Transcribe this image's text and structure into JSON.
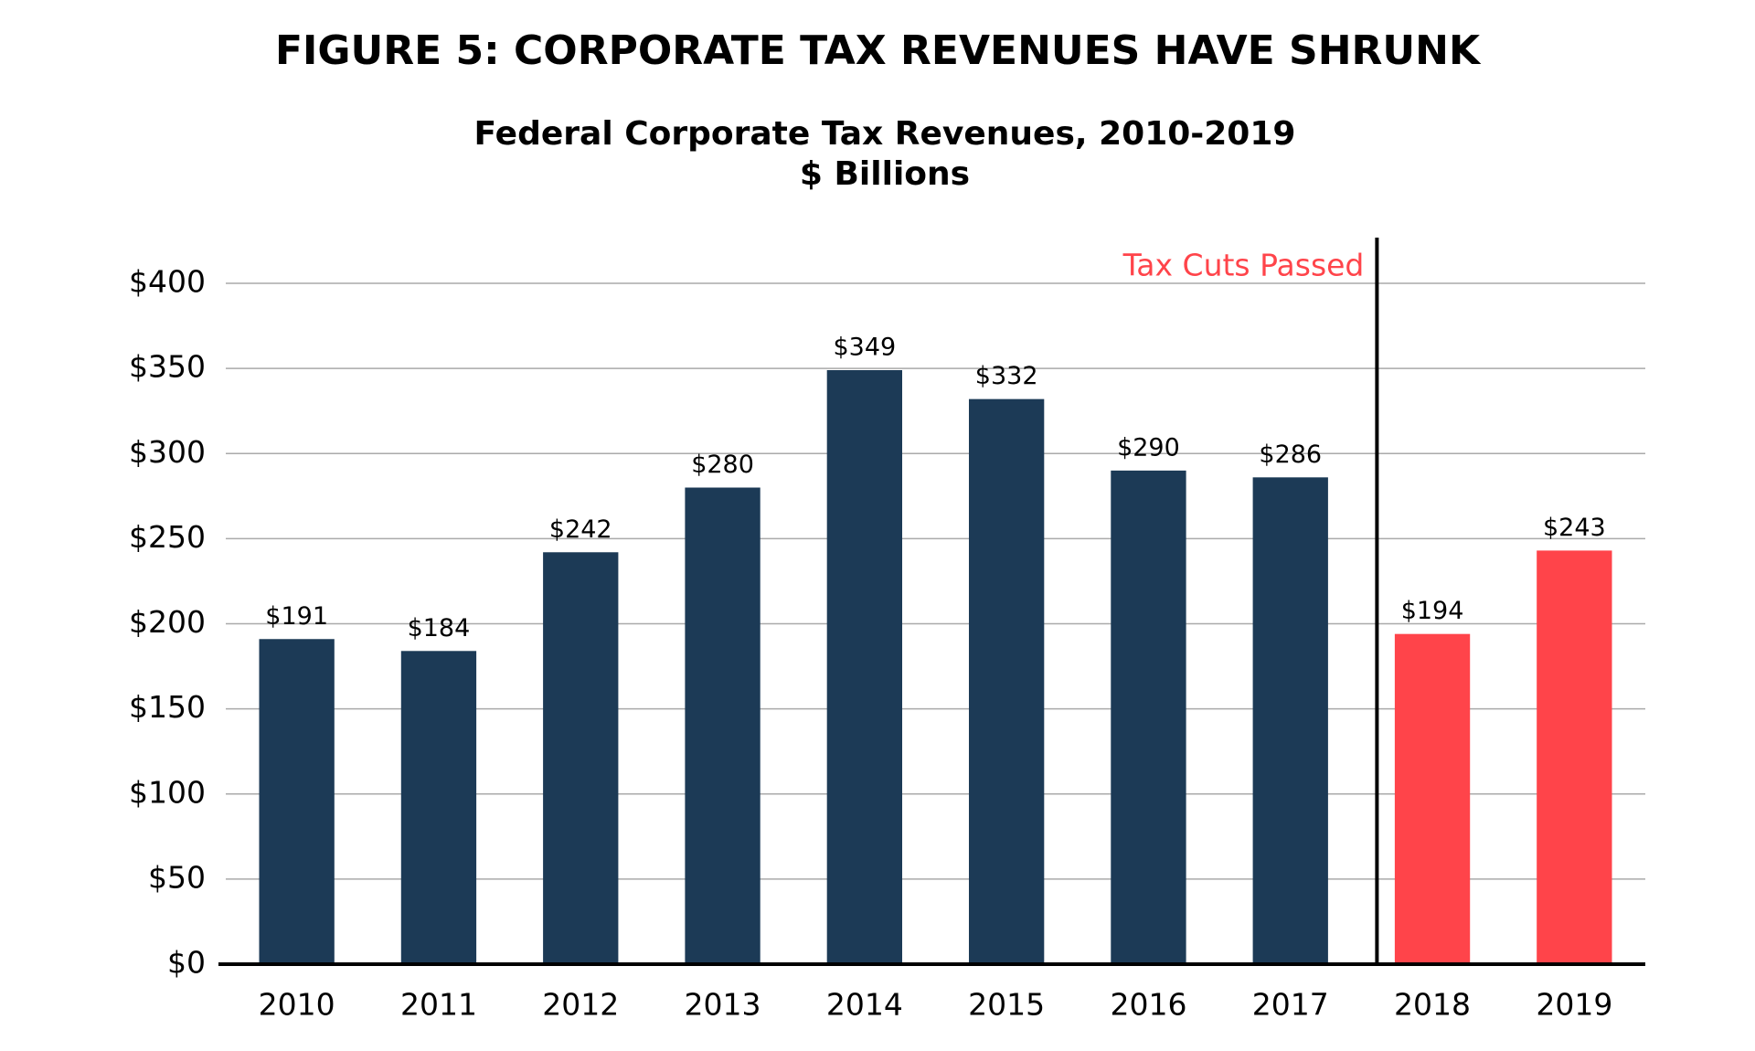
{
  "chart_data": {
    "type": "bar",
    "title": "FIGURE 5: CORPORATE TAX REVENUES HAVE SHRUNK",
    "subtitle": [
      "Federal Corporate Tax Revenues, 2010-2019",
      "$ Billions"
    ],
    "annotation": "Tax Cuts Passed",
    "categories": [
      "2010",
      "2011",
      "2012",
      "2013",
      "2014",
      "2015",
      "2016",
      "2017",
      "2018",
      "2019"
    ],
    "values": [
      191,
      184,
      242,
      280,
      349,
      332,
      290,
      286,
      194,
      243
    ],
    "value_labels": [
      "$191",
      "$184",
      "$242",
      "$280",
      "$349",
      "$332",
      "$290",
      "$286",
      "$194",
      "$243"
    ],
    "colors": [
      "#1c3a56",
      "#1c3a56",
      "#1c3a56",
      "#1c3a56",
      "#1c3a56",
      "#1c3a56",
      "#1c3a56",
      "#1c3a56",
      "#ff444a",
      "#ff444a"
    ],
    "ylim": [
      0,
      400
    ],
    "yticks": [
      {
        "value": 0,
        "label": "$0"
      },
      {
        "value": 50,
        "label": "$50"
      },
      {
        "value": 100,
        "label": "$100"
      },
      {
        "value": 150,
        "label": "$150"
      },
      {
        "value": 200,
        "label": "$200"
      },
      {
        "value": 250,
        "label": "$250"
      },
      {
        "value": 300,
        "label": "$300"
      },
      {
        "value": 350,
        "label": "$350"
      },
      {
        "value": 400,
        "label": "$400"
      }
    ],
    "grid": true
  }
}
